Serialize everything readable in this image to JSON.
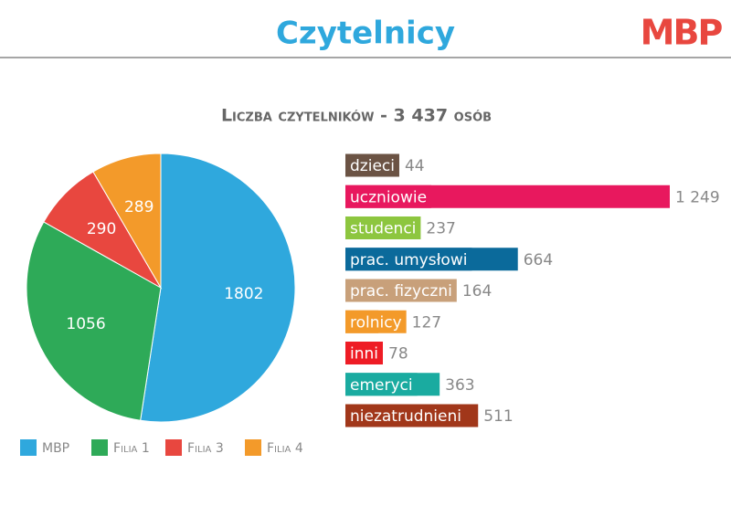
{
  "header": {
    "title": "Czytelnicy",
    "logo": "MBP",
    "subtitle": "Liczba czytelników - 3 437 osób"
  },
  "chart_data": [
    {
      "type": "pie",
      "categories": [
        "MBP",
        "Filia 1",
        "Filia 3",
        "Filia 4"
      ],
      "values": [
        1802,
        1056,
        290,
        289
      ],
      "colors": [
        "#2fa8dd",
        "#2eaa58",
        "#e8473f",
        "#f39a2a"
      ],
      "legend": "bottom"
    },
    {
      "type": "hbar",
      "categories": [
        "dzieci",
        "uczniowie",
        "studenci",
        "prac. umysłowi",
        "prac. fizyczni",
        "rolnicy",
        "inni",
        "emeryci",
        "niezatrudnieni"
      ],
      "values": [
        44,
        1249,
        237,
        664,
        164,
        127,
        78,
        363,
        511
      ],
      "value_labels": [
        "44",
        "1 249",
        "237",
        "664",
        "164",
        "127",
        "78",
        "363",
        "511"
      ],
      "colors": [
        "#6b5344",
        "#e8185e",
        "#8dc63f",
        "#0b6a9b",
        "#c8a07a",
        "#f39a2a",
        "#ee1c25",
        "#1aaba0",
        "#a1371a"
      ]
    }
  ]
}
